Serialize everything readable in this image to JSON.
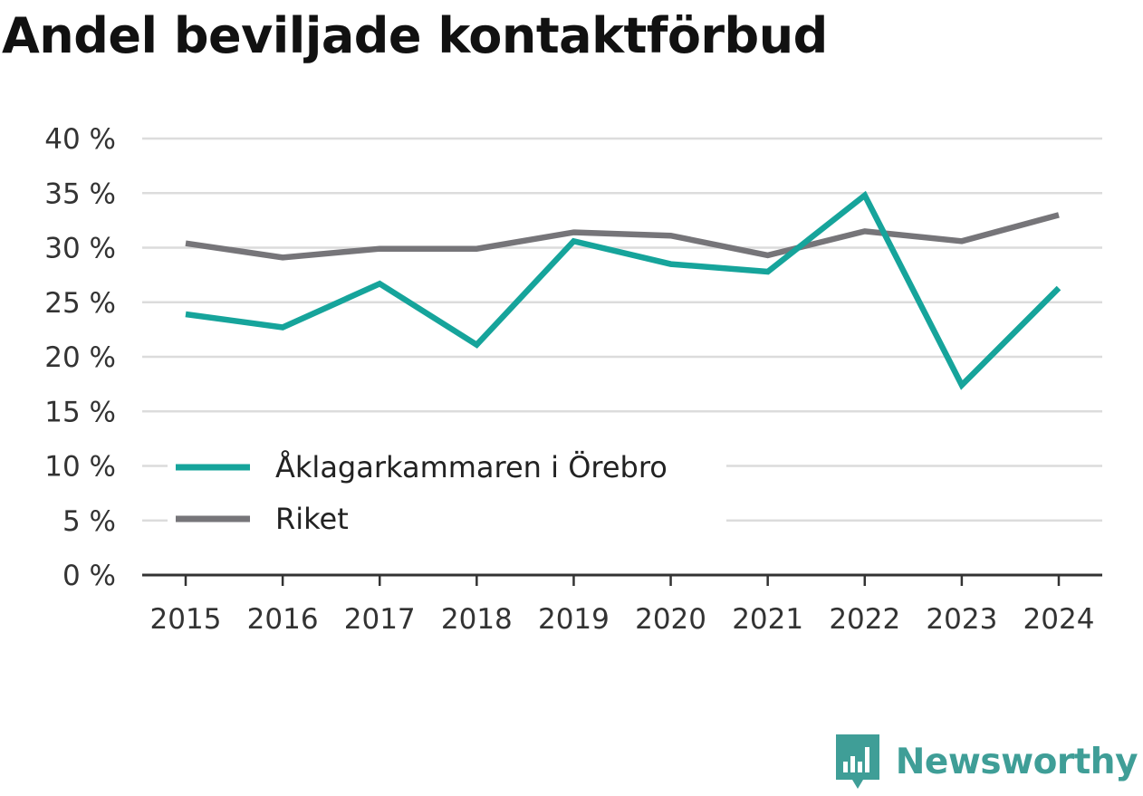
{
  "title": "Andel beviljade kontaktförbud",
  "brand": {
    "name": "Newsworthy",
    "icon": "newsworthy-logo-icon",
    "color": "#3f9e97"
  },
  "chart_data": {
    "type": "line",
    "x": [
      "2015",
      "2016",
      "2017",
      "2018",
      "2019",
      "2020",
      "2021",
      "2022",
      "2023",
      "2024"
    ],
    "series": [
      {
        "name": "Åklagarkammaren i Örebro",
        "color": "#16a49b",
        "values": [
          23.9,
          22.7,
          26.7,
          21.1,
          30.6,
          28.5,
          27.8,
          34.8,
          17.4,
          26.3
        ]
      },
      {
        "name": "Riket",
        "color": "#767579",
        "values": [
          30.4,
          29.1,
          29.9,
          29.9,
          31.4,
          31.1,
          29.3,
          31.5,
          30.6,
          33.0
        ]
      }
    ],
    "y_ticks": [
      "0 %",
      "5 %",
      "10 %",
      "15 %",
      "20 %",
      "25 %",
      "30 %",
      "35 %",
      "40 %"
    ],
    "ylim": [
      0,
      40
    ],
    "grid": true,
    "legend_position": "lower-left"
  }
}
